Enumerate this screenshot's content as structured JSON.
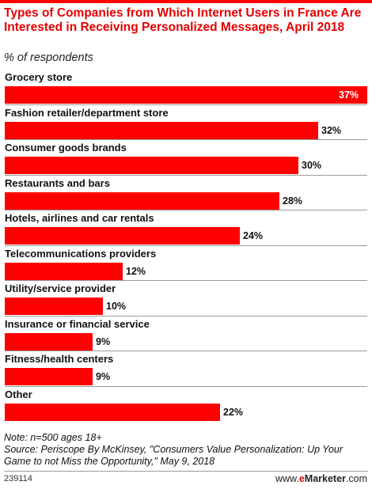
{
  "title": "Types of Companies from Which Internet Users in France Are Interested in Receiving Personalized Messages, April 2018",
  "subtitle": "% of respondents",
  "note": "Note: n=500 ages 18+",
  "source": "Source: Periscope By McKinsey, \"Consumers Value Personalization: Up Your Game to not Miss the Opportunity,\" May 9, 2018",
  "chart_id": "239114",
  "brand": {
    "prefix": "www.",
    "e": "e",
    "name": "Marketer",
    "suffix": ".com"
  },
  "colors": {
    "bar": "#ff0000",
    "title": "#e40000"
  },
  "chart_data": {
    "type": "bar",
    "orientation": "horizontal",
    "title": "Types of Companies from Which Internet Users in France Are Interested in Receiving Personalized Messages, April 2018",
    "ylabel": "% of respondents",
    "categories": [
      "Grocery store",
      "Fashion retailer/department store",
      "Consumer goods brands",
      "Restaurants and bars",
      "Hotels, airlines and car rentals",
      "Telecommunications providers",
      "Utility/service provider",
      "Insurance or financial service",
      "Fitness/health centers",
      "Other"
    ],
    "values": [
      37,
      32,
      30,
      28,
      24,
      12,
      10,
      9,
      9,
      22
    ],
    "value_labels": [
      "37%",
      "32%",
      "30%",
      "28%",
      "24%",
      "12%",
      "10%",
      "9%",
      "9%",
      "22%"
    ],
    "xlim": [
      0,
      37
    ],
    "grid": false,
    "legend": "none"
  }
}
